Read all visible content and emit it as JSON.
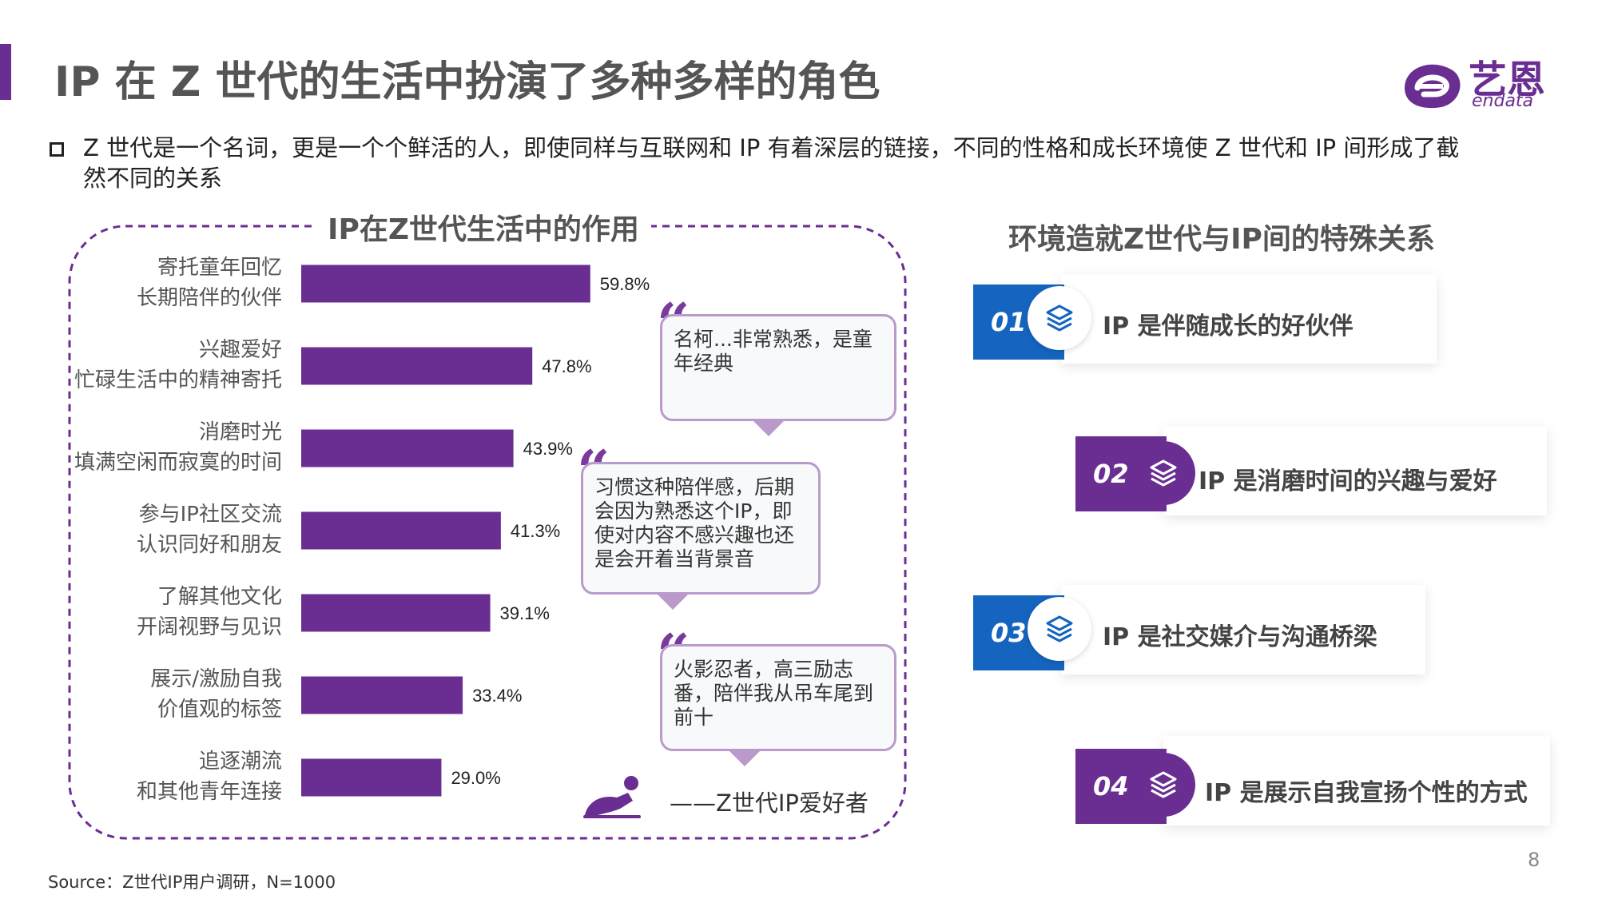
{
  "header": {
    "title": "IP 在 Z 世代的生活中扮演了多种多样的角色",
    "logo_text": "艺恩",
    "logo_sub": "endata"
  },
  "intro": "Z 世代是一个名词，更是一个个鲜活的人，即使同样与互联网和 IP 有着深层的链接，不同的性格和成长环境使 Z 世代和 IP 间形成了截然不同的关系",
  "colors": {
    "brand": "#6a2e92",
    "blue": "#1565c0",
    "quote_border": "#b99acb"
  },
  "chart_data": {
    "type": "bar",
    "orientation": "horizontal",
    "title": "IP在Z世代生活中的作用",
    "categories": [
      [
        "寄托童年回忆",
        "长期陪伴的伙伴"
      ],
      [
        "兴趣爱好",
        "忙碌生活中的精神寄托"
      ],
      [
        "消磨时光",
        "填满空闲而寂寞的时间"
      ],
      [
        "参与IP社区交流",
        "认识同好和朋友"
      ],
      [
        "了解其他文化",
        "开阔视野与见识"
      ],
      [
        "展示/激励自我",
        "价值观的标签"
      ],
      [
        "追逐潮流",
        "和其他青年连接"
      ]
    ],
    "values": [
      59.8,
      47.8,
      43.9,
      41.3,
      39.1,
      33.4,
      29.0
    ],
    "value_labels": [
      "59.8%",
      "47.8%",
      "43.9%",
      "41.3%",
      "39.1%",
      "33.4%",
      "29.0%"
    ],
    "unit": "%",
    "xlim": [
      0,
      100
    ],
    "bar_color": "#6a2e92"
  },
  "quotes": [
    "名柯...非常熟悉，是童年经典",
    "习惯这种陪伴感，后期会因为熟悉这个IP，即使对内容不感兴趣也还是会开着当背景音",
    "火影忍者，高三励志番，陪伴我从吊车尾到前十"
  ],
  "attribution": "——Z世代IP爱好者",
  "right_panel": {
    "title": "环境造就Z世代与IP间的特殊关系",
    "roles": [
      {
        "num": "01",
        "text": "IP 是伴随成长的好伙伴",
        "color": "#1565c0",
        "icon": "layers-icon"
      },
      {
        "num": "02",
        "text": "IP 是消磨时间的兴趣与爱好",
        "color": "#6a2e92",
        "icon": "layers-icon"
      },
      {
        "num": "03",
        "text": "IP 是社交媒介与沟通桥梁",
        "color": "#1565c0",
        "icon": "layers-icon"
      },
      {
        "num": "04",
        "text": "IP 是展示自我宣扬个性的方式",
        "color": "#6a2e92",
        "icon": "layers-icon"
      }
    ]
  },
  "source": "Source：Z世代IP用户调研，N=1000",
  "page_number": "8"
}
